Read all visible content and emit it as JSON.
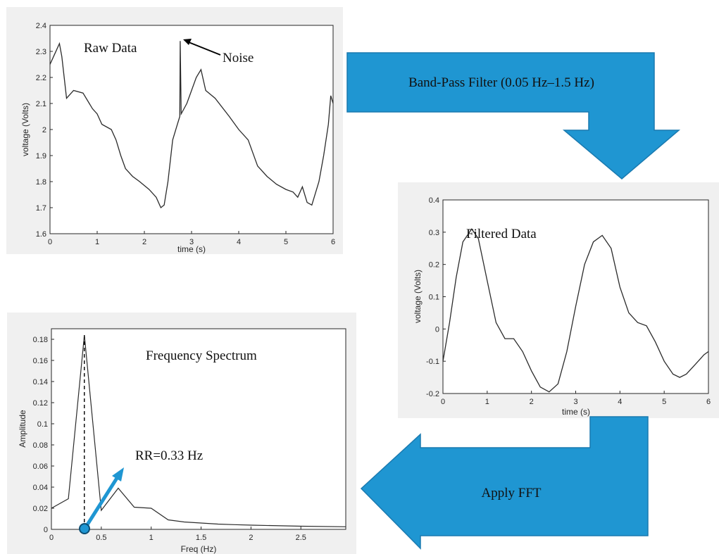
{
  "colors": {
    "arrow": "#1f96d2",
    "arrow_stroke": "#1a7ab0",
    "line": "#2b2b2b",
    "panel": "#f0f0f0"
  },
  "flow": {
    "bandpass_label": "Band-Pass Filter (0.05 Hz–1.5 Hz)",
    "fft_label": "Apply FFT"
  },
  "chart_data": [
    {
      "id": "raw",
      "type": "line",
      "xlabel": "time (s)",
      "ylabel": "voltage (Volts)",
      "xlim": [
        0,
        6
      ],
      "ylim": [
        1.6,
        2.4
      ],
      "xticks": [
        "0",
        "1",
        "2",
        "3",
        "4",
        "5",
        "6"
      ],
      "yticks": [
        "1.6",
        "1.7",
        "1.8",
        "1.9",
        "2",
        "2.1",
        "2.2",
        "2.3",
        "2.4"
      ],
      "annotations": {
        "title": "Raw Data",
        "noise": "Noise"
      },
      "x": [
        0,
        0.1,
        0.2,
        0.25,
        0.35,
        0.5,
        0.7,
        0.9,
        1.0,
        1.1,
        1.3,
        1.4,
        1.5,
        1.6,
        1.75,
        1.9,
        2.1,
        2.25,
        2.35,
        2.42,
        2.5,
        2.6,
        2.7,
        2.75,
        2.76,
        2.78,
        2.9,
        3.0,
        3.1,
        3.2,
        3.3,
        3.5,
        3.8,
        4.0,
        4.2,
        4.4,
        4.6,
        4.8,
        5.0,
        5.15,
        5.25,
        5.35,
        5.45,
        5.55,
        5.7,
        5.8,
        5.9,
        5.95,
        6.0
      ],
      "y": [
        2.25,
        2.29,
        2.33,
        2.28,
        2.12,
        2.15,
        2.14,
        2.08,
        2.06,
        2.02,
        2.0,
        1.96,
        1.9,
        1.85,
        1.82,
        1.8,
        1.77,
        1.74,
        1.7,
        1.71,
        1.8,
        1.96,
        2.02,
        2.05,
        2.34,
        2.06,
        2.1,
        2.15,
        2.2,
        2.23,
        2.15,
        2.12,
        2.05,
        2.0,
        1.96,
        1.86,
        1.82,
        1.79,
        1.77,
        1.76,
        1.74,
        1.78,
        1.72,
        1.71,
        1.8,
        1.9,
        2.02,
        2.13,
        2.1
      ]
    },
    {
      "id": "filtered",
      "type": "line",
      "xlabel": "time (s)",
      "ylabel": "voltage (Volts)",
      "xlim": [
        0,
        6
      ],
      "ylim": [
        -0.2,
        0.4
      ],
      "xticks": [
        "0",
        "1",
        "2",
        "3",
        "4",
        "5",
        "6"
      ],
      "yticks": [
        "-0.2",
        "-0.1",
        "0",
        "0.1",
        "0.2",
        "0.3",
        "0.4"
      ],
      "annotations": {
        "title": "Filtered Data"
      },
      "x": [
        0,
        0.15,
        0.3,
        0.45,
        0.65,
        0.8,
        1.0,
        1.2,
        1.4,
        1.6,
        1.8,
        2.0,
        2.2,
        2.4,
        2.6,
        2.8,
        3.0,
        3.2,
        3.4,
        3.6,
        3.8,
        4.0,
        4.2,
        4.4,
        4.6,
        4.8,
        5.0,
        5.2,
        5.35,
        5.5,
        5.7,
        5.9,
        6.0
      ],
      "y": [
        -0.1,
        0.02,
        0.16,
        0.27,
        0.31,
        0.28,
        0.15,
        0.02,
        -0.03,
        -0.03,
        -0.07,
        -0.13,
        -0.18,
        -0.195,
        -0.17,
        -0.07,
        0.07,
        0.2,
        0.27,
        0.29,
        0.25,
        0.13,
        0.05,
        0.02,
        0.01,
        -0.04,
        -0.1,
        -0.14,
        -0.15,
        -0.14,
        -0.11,
        -0.08,
        -0.07
      ]
    },
    {
      "id": "spectrum",
      "type": "line",
      "xlabel": "Freq (Hz)",
      "ylabel": "Amplitude",
      "xlim": [
        0,
        2.95
      ],
      "ylim": [
        0,
        0.19
      ],
      "xticks": [
        "0",
        "0.5",
        "1",
        "1.5",
        "2",
        "2.5"
      ],
      "xtick_values": [
        0,
        0.5,
        1,
        1.5,
        2,
        2.5
      ],
      "yticks": [
        "0",
        "0.02",
        "0.04",
        "0.06",
        "0.08",
        "0.1",
        "0.12",
        "0.14",
        "0.16",
        "0.18"
      ],
      "ytick_values": [
        0,
        0.02,
        0.04,
        0.06,
        0.08,
        0.1,
        0.12,
        0.14,
        0.16,
        0.18
      ],
      "annotations": {
        "title": "Frequency Spectrum",
        "rr": "RR=0.33 Hz"
      },
      "peak_x": 0.33,
      "x": [
        0,
        0.17,
        0.33,
        0.5,
        0.67,
        0.83,
        1.0,
        1.17,
        1.33,
        1.5,
        1.67,
        1.83,
        2.0,
        2.5,
        2.95
      ],
      "y": [
        0.02,
        0.029,
        0.184,
        0.018,
        0.039,
        0.021,
        0.02,
        0.009,
        0.007,
        0.006,
        0.005,
        0.0045,
        0.004,
        0.003,
        0.0025
      ]
    }
  ]
}
